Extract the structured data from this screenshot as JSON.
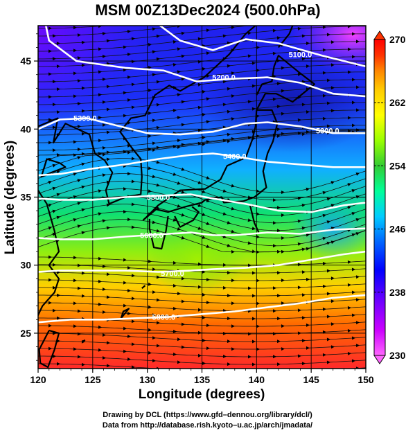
{
  "chart_data": {
    "type": "heatmap",
    "title": "MSM 00Z13Dec2024 (500.0hPa)",
    "xlabel": "Longitude (degrees)",
    "ylabel": "Latitude  (degrees)",
    "xlim": [
      120,
      150
    ],
    "ylim": [
      22.4,
      47.6
    ],
    "x_ticks": [
      120,
      125,
      130,
      135,
      140,
      145,
      150
    ],
    "y_ticks": [
      25,
      30,
      35,
      40,
      45
    ],
    "colorbar": {
      "min": 230,
      "max": 270,
      "ticks": [
        230,
        238,
        246,
        254,
        262,
        270
      ],
      "colors": [
        "#ff66ff",
        "#cc00ff",
        "#6600ff",
        "#0000ff",
        "#0066ff",
        "#00ccff",
        "#00ff99",
        "#33cc33",
        "#99ff00",
        "#ffff00",
        "#ffcc00",
        "#ff8800",
        "#ff3300",
        "#ff0000"
      ]
    },
    "contours": [
      {
        "label": "5100.0",
        "label_lon": 144.0,
        "label_lat": 45.5,
        "points": [
          [
            130.5,
            48.0
          ],
          [
            133,
            46.5
          ],
          [
            136,
            45.8
          ],
          [
            139,
            46.6
          ],
          [
            142,
            46.3
          ],
          [
            146,
            45.4
          ],
          [
            150,
            44.6
          ]
        ]
      },
      {
        "label": "5200.0",
        "label_lon": 137.0,
        "label_lat": 43.8,
        "points": [
          [
            120.6,
            48.0
          ],
          [
            121,
            46.5
          ],
          [
            123.5,
            45.0
          ],
          [
            128,
            44.5
          ],
          [
            131.5,
            44.3
          ],
          [
            134.5,
            43.5
          ],
          [
            138,
            43.7
          ],
          [
            141,
            43.8
          ],
          [
            144,
            43.4
          ],
          [
            147,
            42.6
          ],
          [
            150,
            42.4
          ]
        ]
      },
      {
        "label": "5300.0",
        "label_lon": 124.3,
        "label_lat": 40.8,
        "points": [
          [
            120,
            40.0
          ],
          [
            122,
            40.7
          ],
          [
            124.5,
            40.8
          ],
          [
            127,
            40.3
          ],
          [
            130,
            39.7
          ],
          [
            133,
            39.6
          ],
          [
            136,
            39.8
          ],
          [
            139,
            40.4
          ],
          [
            141,
            40.5
          ],
          [
            144,
            40.2
          ],
          [
            147,
            39.7
          ],
          [
            150,
            39.7
          ]
        ]
      },
      {
        "label": "5300.0",
        "label_lon": 146.5,
        "label_lat": 39.9,
        "points": []
      },
      {
        "label": "5400.0",
        "label_lon": 138.0,
        "label_lat": 38.0,
        "points": [
          [
            120,
            36.6
          ],
          [
            122,
            36.7
          ],
          [
            125,
            37.1
          ],
          [
            128,
            37.4
          ],
          [
            131,
            37.8
          ],
          [
            134,
            38.1
          ],
          [
            136,
            38.2
          ],
          [
            138,
            38.0
          ],
          [
            141,
            37.6
          ],
          [
            144,
            37.4
          ],
          [
            147,
            37.2
          ],
          [
            150,
            37.2
          ]
        ]
      },
      {
        "label": "5500.0",
        "label_lon": 131.0,
        "label_lat": 35.0,
        "points": [
          [
            120,
            34.9
          ],
          [
            122,
            34.8
          ],
          [
            125,
            34.8
          ],
          [
            128,
            35.0
          ],
          [
            131,
            35.1
          ],
          [
            134,
            35.2
          ],
          [
            136,
            34.9
          ],
          [
            139,
            34.5
          ],
          [
            142,
            34.0
          ],
          [
            145,
            33.9
          ],
          [
            148,
            34.4
          ],
          [
            150,
            34.6
          ]
        ]
      },
      {
        "label": "5600.0",
        "label_lon": 130.4,
        "label_lat": 32.2,
        "points": [
          [
            120,
            32.0
          ],
          [
            122,
            31.9
          ],
          [
            125,
            31.9
          ],
          [
            128,
            32.1
          ],
          [
            130,
            32.2
          ],
          [
            132,
            32.3
          ],
          [
            134,
            32.4
          ],
          [
            136,
            32.2
          ],
          [
            138,
            32.2
          ],
          [
            141,
            32.4
          ],
          [
            144,
            32.3
          ],
          [
            147,
            32.6
          ],
          [
            150,
            32.7
          ]
        ]
      },
      {
        "label": "5700.0",
        "label_lon": 132.3,
        "label_lat": 29.4,
        "points": [
          [
            120,
            29.5
          ],
          [
            122,
            29.6
          ],
          [
            125,
            29.6
          ],
          [
            128,
            29.6
          ],
          [
            131,
            29.5
          ],
          [
            134,
            29.6
          ],
          [
            136,
            29.7
          ],
          [
            139,
            29.8
          ],
          [
            142,
            30.0
          ],
          [
            145,
            30.4
          ],
          [
            148,
            30.8
          ],
          [
            150,
            31.0
          ]
        ]
      },
      {
        "label": "5800.0",
        "label_lon": 131.5,
        "label_lat": 26.2,
        "points": [
          [
            120,
            25.8
          ],
          [
            123,
            26.0
          ],
          [
            126,
            26.0
          ],
          [
            129,
            26.1
          ],
          [
            132,
            26.2
          ],
          [
            135,
            26.4
          ],
          [
            138,
            26.6
          ],
          [
            141,
            26.9
          ],
          [
            144,
            27.2
          ],
          [
            147,
            27.6
          ],
          [
            150,
            27.8
          ]
        ]
      }
    ]
  },
  "credits": {
    "line1": "Drawing by DCL (https://www.gfd–dennou.org/library/dcl/)",
    "line2": "Data from http://database.rish.kyoto–u.ac.jp/arch/jmadata/"
  }
}
